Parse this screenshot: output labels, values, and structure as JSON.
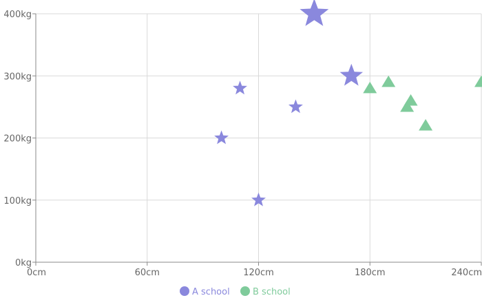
{
  "chart_data": {
    "type": "scatter",
    "x_axis": {
      "min": 0,
      "max": 240,
      "ticks": [
        0,
        60,
        120,
        180,
        240
      ],
      "unit": "cm"
    },
    "y_axis": {
      "min": 0,
      "max": 400,
      "ticks": [
        0,
        100,
        200,
        300,
        400
      ],
      "unit": "kg"
    },
    "grid": true,
    "legend_position": "bottom-center",
    "series": [
      {
        "name": "A school",
        "color": "#8a88dd",
        "marker": "star",
        "points": [
          {
            "x": 100,
            "y": 200,
            "size": 1
          },
          {
            "x": 110,
            "y": 280,
            "size": 1
          },
          {
            "x": 120,
            "y": 100,
            "size": 1
          },
          {
            "x": 140,
            "y": 250,
            "size": 1
          },
          {
            "x": 150,
            "y": 400,
            "size": 2
          },
          {
            "x": 170,
            "y": 300,
            "size": 1.6
          }
        ]
      },
      {
        "name": "B school",
        "color": "#7fcb9b",
        "marker": "triangle",
        "points": [
          {
            "x": 180,
            "y": 280,
            "size": 1
          },
          {
            "x": 190,
            "y": 290,
            "size": 1
          },
          {
            "x": 200,
            "y": 250,
            "size": 1
          },
          {
            "x": 202,
            "y": 260,
            "size": 1
          },
          {
            "x": 210,
            "y": 220,
            "size": 1
          },
          {
            "x": 240,
            "y": 290,
            "size": 1
          }
        ]
      }
    ]
  }
}
